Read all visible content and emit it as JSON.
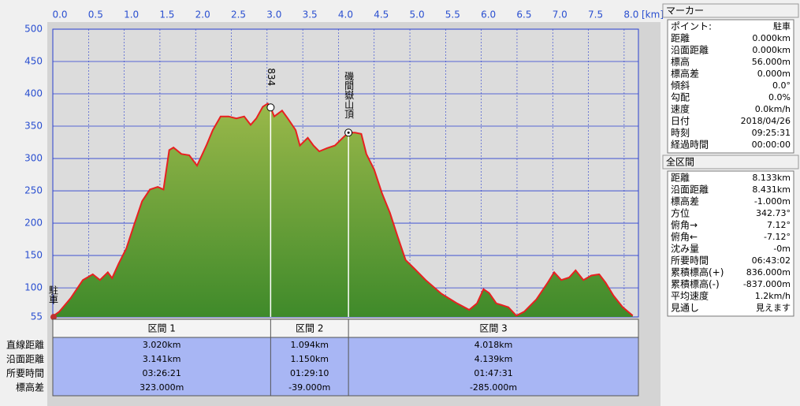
{
  "chart_data": {
    "type": "area",
    "x_unit": "[km]",
    "x": [
      0,
      0.09,
      0.25,
      0.42,
      0.56,
      0.66,
      0.77,
      0.83,
      0.92,
      1.03,
      1.14,
      1.25,
      1.36,
      1.47,
      1.55,
      1.63,
      1.69,
      1.8,
      1.91,
      2.02,
      2.15,
      2.24,
      2.35,
      2.46,
      2.57,
      2.68,
      2.77,
      2.85,
      2.94,
      3.01,
      3.05,
      3.1,
      3.21,
      3.29,
      3.4,
      3.46,
      3.57,
      3.65,
      3.73,
      3.84,
      3.95,
      4.06,
      4.14,
      4.23,
      4.32,
      4.39,
      4.5,
      4.61,
      4.72,
      4.83,
      4.94,
      5.06,
      5.22,
      5.44,
      5.66,
      5.83,
      5.94,
      6.03,
      6.11,
      6.21,
      6.38,
      6.49,
      6.6,
      6.77,
      6.93,
      7.02,
      7.12,
      7.23,
      7.32,
      7.43,
      7.54,
      7.65,
      7.74,
      7.85,
      7.98,
      8.12
    ],
    "values": [
      56,
      63,
      84,
      112,
      121,
      112,
      124,
      115,
      137,
      161,
      198,
      234,
      252,
      256,
      252,
      313,
      317,
      307,
      305,
      289,
      320,
      344,
      365,
      365,
      362,
      365,
      352,
      362,
      380,
      385,
      379,
      365,
      374,
      362,
      344,
      320,
      332,
      320,
      311,
      316,
      320,
      332,
      340,
      340,
      338,
      307,
      283,
      246,
      216,
      179,
      143,
      130,
      112,
      91,
      76,
      66,
      76,
      98,
      92,
      76,
      70,
      57,
      63,
      82,
      108,
      124,
      112,
      116,
      127,
      112,
      119,
      121,
      108,
      88,
      70,
      57
    ],
    "color": "#e82020",
    "xlim": [
      0,
      8.2
    ],
    "ylim": [
      55,
      500
    ],
    "xticks": [
      {
        "value": 0,
        "label": "0.0"
      },
      0.5,
      {
        "value": 1,
        "label": "1.0"
      },
      1.5,
      {
        "value": 2,
        "label": "2.0"
      },
      2.5,
      {
        "value": 3,
        "label": "3.0"
      },
      3.5,
      {
        "value": 4,
        "label": "4.0"
      },
      4.5,
      {
        "value": 5,
        "label": "5.0"
      },
      5.5,
      {
        "value": 6,
        "label": "6.0"
      },
      6.5,
      {
        "value": 7,
        "label": "7.0"
      },
      7.5,
      {
        "value": 8,
        "label": "8.0"
      }
    ],
    "yticks": [
      55,
      100,
      150,
      200,
      250,
      300,
      350,
      400,
      450,
      500
    ],
    "grid": true,
    "markers": [
      {
        "label": "駐車",
        "x": 0,
        "y": 56
      },
      {
        "label": "834",
        "x": 3.05,
        "y": 379
      },
      {
        "label": "磯間嶽山頂",
        "x": 4.14,
        "y": 340
      }
    ]
  },
  "sections": {
    "row_labels": [
      "直線距離",
      "沿面距離",
      "所要時間",
      "標高差"
    ],
    "columns": [
      {
        "name": "区間 1",
        "values": [
          "3.020km",
          "3.141km",
          "03:26:21",
          "323.000m"
        ]
      },
      {
        "name": "区間 2",
        "values": [
          "1.094km",
          "1.150km",
          "01:29:10",
          "-39.000m"
        ]
      },
      {
        "name": "区間 3",
        "values": [
          "4.018km",
          "4.139km",
          "01:47:31",
          "-285.000m"
        ]
      }
    ]
  },
  "marker_panel": {
    "title": "マーカー",
    "rows": [
      [
        "ポイント:",
        "駐車"
      ],
      [
        "距離",
        "0.000km"
      ],
      [
        "沿面距離",
        "0.000km"
      ],
      [
        "標高",
        "56.000m"
      ],
      [
        "標高差",
        "0.000m"
      ],
      [
        "傾斜",
        "0.0°"
      ],
      [
        "勾配",
        "0.0%"
      ],
      [
        "速度",
        "0.0km/h"
      ],
      [
        "日付",
        "2018/04/26"
      ],
      [
        "時刻",
        "09:25:31"
      ],
      [
        "経過時間",
        "00:00:00"
      ]
    ]
  },
  "total_panel": {
    "title": "全区間",
    "rows": [
      [
        "距離",
        "8.133km"
      ],
      [
        "沿面距離",
        "8.431km"
      ],
      [
        "標高差",
        "-1.000m"
      ],
      [
        "方位",
        "342.73°"
      ],
      [
        "俯角→",
        "7.12°"
      ],
      [
        "俯角←",
        "-7.12°"
      ],
      [
        "沈み量",
        "-0m"
      ],
      [
        "所要時間",
        "06:43:02"
      ],
      [
        "累積標高(+)",
        "836.000m"
      ],
      [
        "累積標高(-)",
        "-837.000m"
      ],
      [
        "平均速度",
        "1.2km/h"
      ],
      [
        "見通し",
        "見えます"
      ]
    ]
  }
}
